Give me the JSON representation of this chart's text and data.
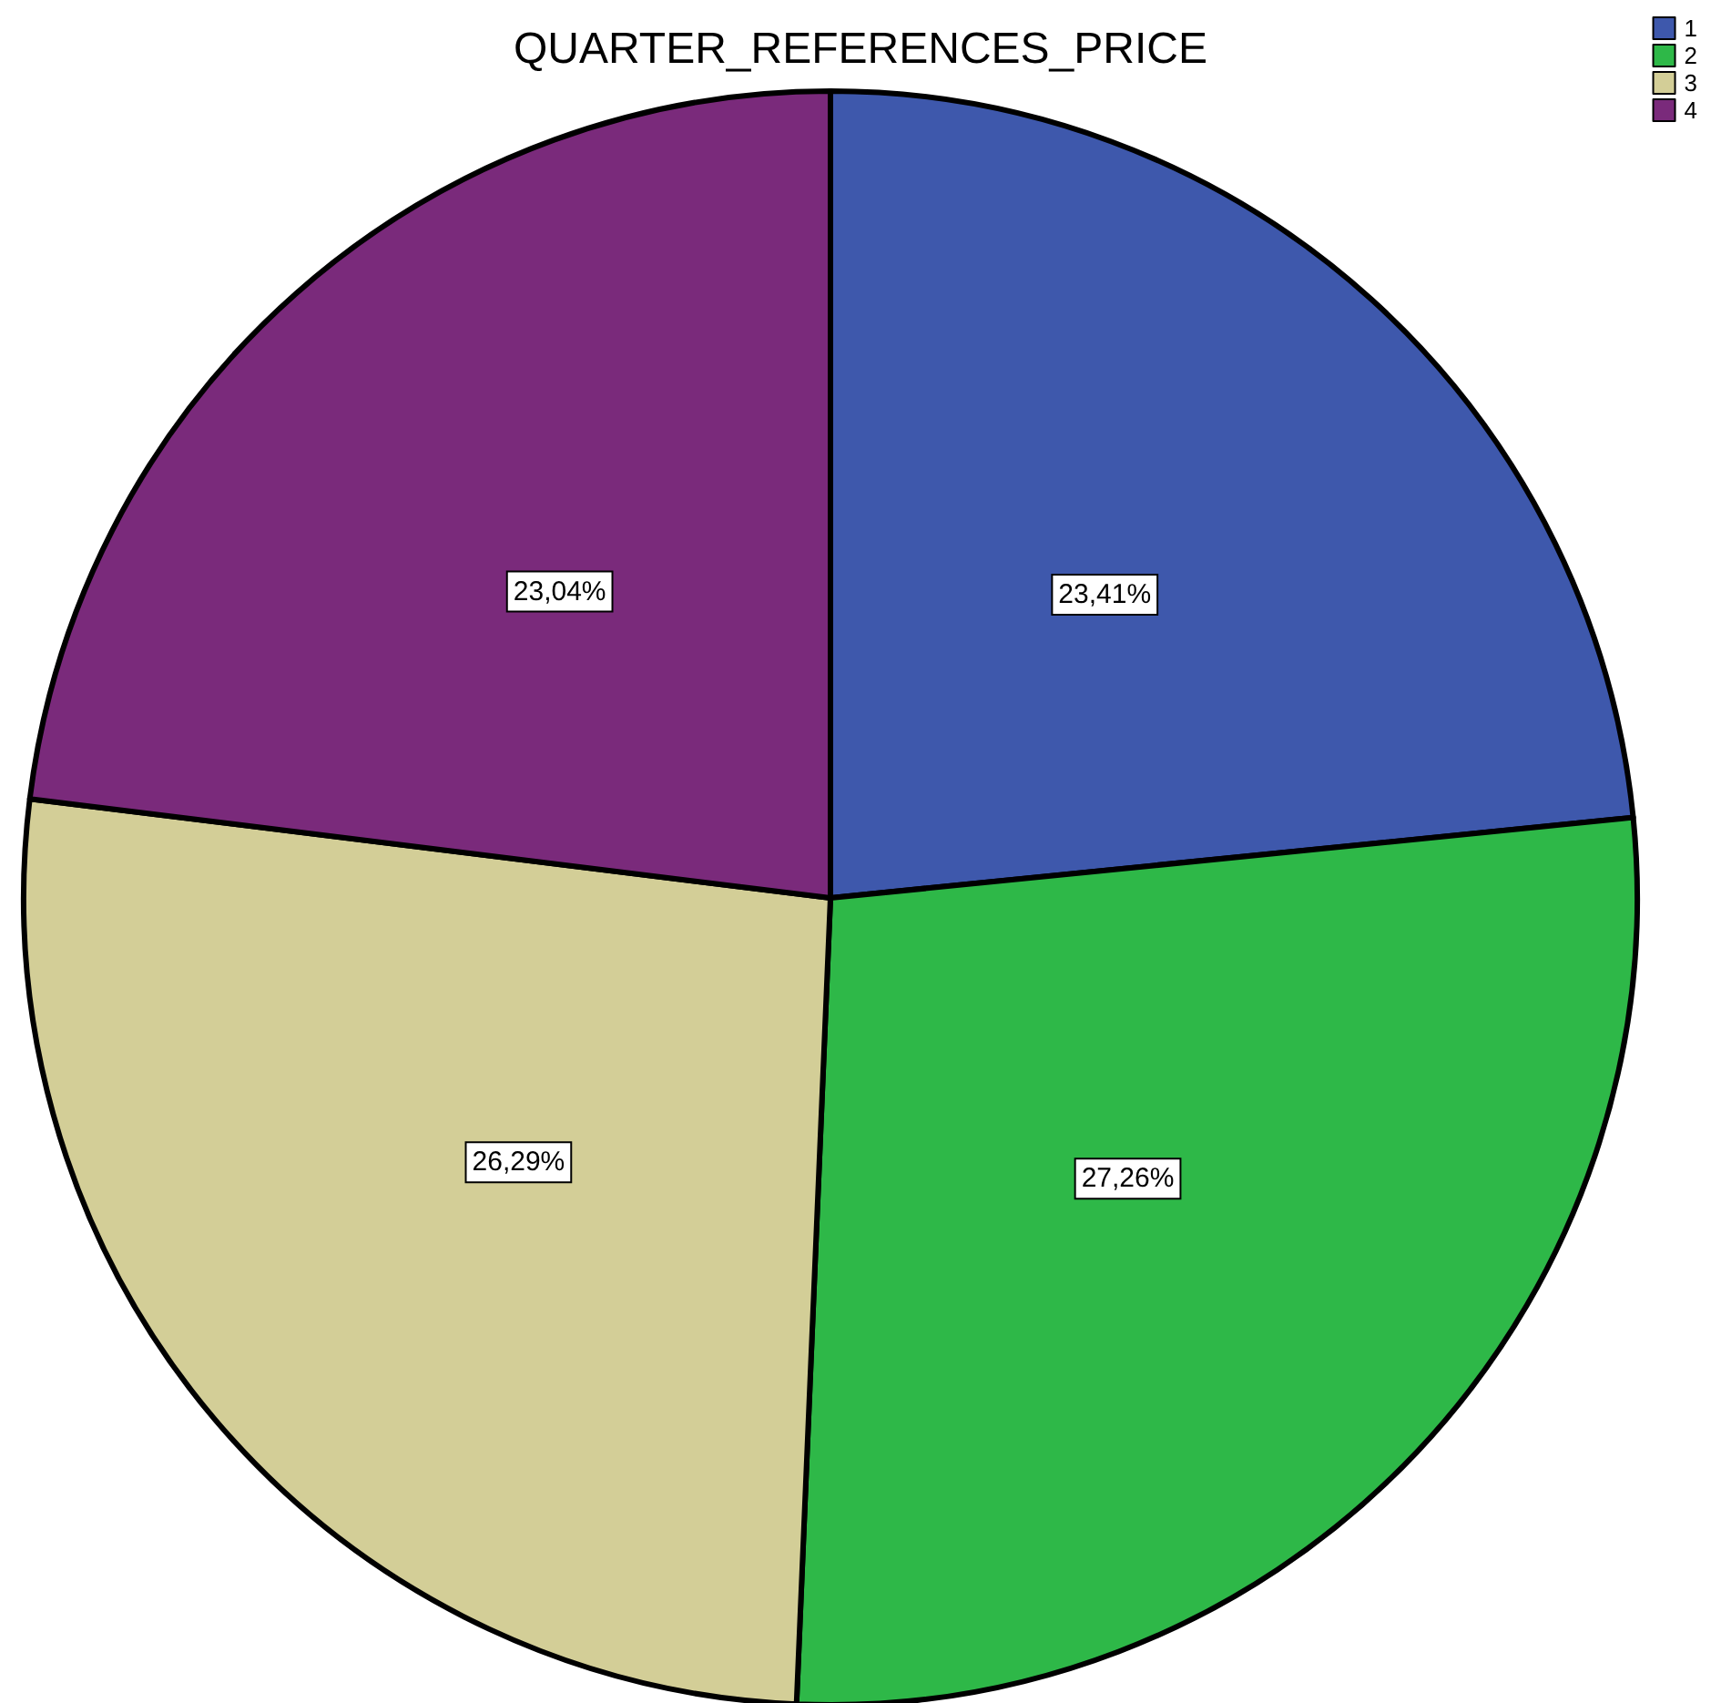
{
  "chart_data": {
    "type": "pie",
    "title": "QUARTER_REFERENCES_PRICE",
    "categories": [
      "1",
      "2",
      "3",
      "4"
    ],
    "values": [
      23.41,
      27.26,
      26.29,
      23.04
    ],
    "value_labels": [
      "23,41%",
      "27,26%",
      "26,29%",
      "23,04%"
    ],
    "colors": [
      "#3e58ac",
      "#2eb848",
      "#d3ce97",
      "#7a2a7b"
    ],
    "legend": "top right"
  }
}
